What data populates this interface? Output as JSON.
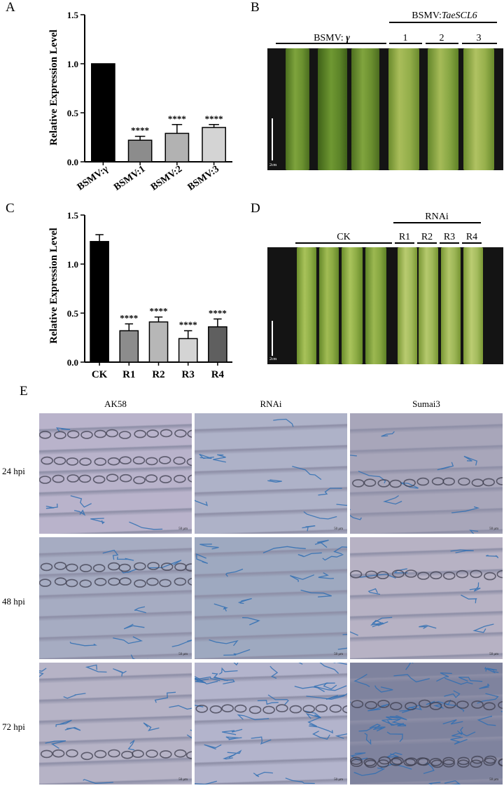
{
  "panels": {
    "a": "A",
    "b": "B",
    "c": "C",
    "d": "D",
    "e": "E"
  },
  "chart_data": [
    {
      "type": "bar",
      "ylabel": "Relative Expression Level",
      "ylim": [
        0,
        1.5
      ],
      "yticks": [
        "0.0",
        "0.5",
        "1.0",
        "1.5"
      ],
      "categories": [
        "BSMV:γ",
        "BSMV:1",
        "BSMV:2",
        "BSMV:3"
      ],
      "values": [
        1.0,
        0.22,
        0.29,
        0.35
      ],
      "errors": [
        0,
        0.04,
        0.09,
        0.03
      ],
      "annotations": [
        "",
        "****",
        "****",
        "****"
      ],
      "colors": [
        "#000000",
        "#8c8c8c",
        "#b2b2b2",
        "#d4d4d4"
      ]
    },
    {
      "type": "bar",
      "ylabel": "Relative Expression Level",
      "ylim": [
        0,
        1.5
      ],
      "yticks": [
        "0.0",
        "0.5",
        "1.0",
        "1.5"
      ],
      "categories": [
        "CK",
        "R1",
        "R2",
        "R3",
        "R4"
      ],
      "values": [
        1.23,
        0.32,
        0.41,
        0.24,
        0.36
      ],
      "errors": [
        0.07,
        0.07,
        0.05,
        0.08,
        0.08
      ],
      "annotations": [
        "",
        "****",
        "****",
        "****",
        "****"
      ],
      "colors": [
        "#000000",
        "#8c8c8c",
        "#b7b7b7",
        "#d4d4d4",
        "#5f5f5f"
      ]
    }
  ],
  "panel_b": {
    "group_control": "BSMV:",
    "group_control_gamma": "γ",
    "group_treat_prefix": "BSMV:",
    "group_treat_gene": "TaeSCL6",
    "lanes": [
      "1",
      "2",
      "3"
    ],
    "scale": "2cm"
  },
  "panel_d": {
    "group_control": "CK",
    "group_treat": "RNAi",
    "lanes": [
      "R1",
      "R2",
      "R3",
      "R4"
    ],
    "scale": "2cm"
  },
  "panel_e": {
    "columns": [
      "AK58",
      "RNAi",
      "Sumai3"
    ],
    "rows": [
      "24 hpi",
      "48 hpi",
      "72 hpi"
    ],
    "scale": "50 μm"
  }
}
